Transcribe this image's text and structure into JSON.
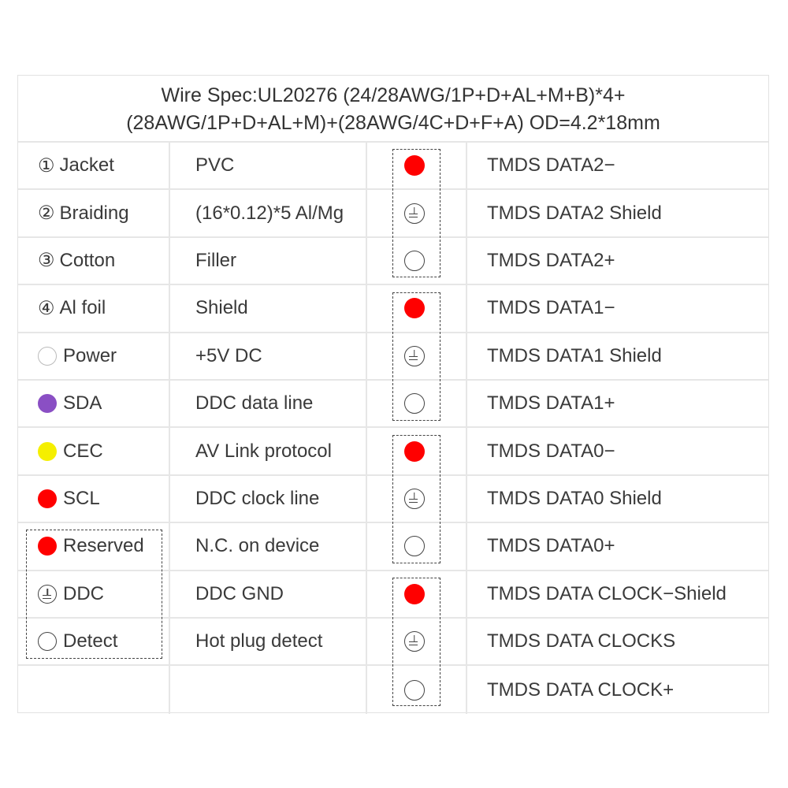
{
  "title": {
    "line1": "Wire Spec:UL20276 (24/28AWG/1P+D+AL+M+B)*4+",
    "line2": "(28AWG/1P+D+AL+M)+(28AWG/4C+D+F+A) OD=4.2*18mm"
  },
  "rows": [
    {
      "icon": "num",
      "num": "①",
      "label": "Jacket",
      "desc": "PVC",
      "pin_icon": "red",
      "signal": "TMDS DATA2−"
    },
    {
      "icon": "num",
      "num": "②",
      "label": "Braiding",
      "desc": "(16*0.12)*5 Al/Mg",
      "pin_icon": "ground",
      "signal": "TMDS DATA2 Shield"
    },
    {
      "icon": "num",
      "num": "③",
      "label": "Cotton",
      "desc": "Filler",
      "pin_icon": "white",
      "signal": "TMDS DATA2+"
    },
    {
      "icon": "num",
      "num": "④",
      "label": "Al foil",
      "desc": "Shield",
      "pin_icon": "red",
      "signal": "TMDS DATA1−"
    },
    {
      "icon": "hollow",
      "label": "Power",
      "desc": "+5V DC",
      "pin_icon": "ground",
      "signal": "TMDS DATA1 Shield"
    },
    {
      "icon": "purple",
      "label": "SDA",
      "desc": "DDC data line",
      "pin_icon": "white",
      "signal": "TMDS DATA1+"
    },
    {
      "icon": "yellow",
      "label": "CEC",
      "desc": "AV Link protocol",
      "pin_icon": "red",
      "signal": "TMDS DATA0−"
    },
    {
      "icon": "red",
      "label": "SCL",
      "desc": "DDC clock line",
      "pin_icon": "ground",
      "signal": "TMDS DATA0 Shield"
    },
    {
      "icon": "red",
      "label": "Reserved",
      "desc": "N.C. on device",
      "pin_icon": "white",
      "signal": "TMDS DATA0+"
    },
    {
      "icon": "ground",
      "label": "DDC",
      "desc": "DDC GND",
      "pin_icon": "red",
      "signal": "TMDS DATA CLOCK−Shield"
    },
    {
      "icon": "white",
      "label": "Detect",
      "desc": "Hot plug detect",
      "pin_icon": "ground",
      "signal": "TMDS DATA CLOCKS"
    },
    {
      "icon": "",
      "label": "",
      "desc": "",
      "pin_icon": "white",
      "signal": "TMDS DATA CLOCK+"
    }
  ],
  "colors": {
    "red": "#ff0000",
    "purple": "#8a4fc4",
    "yellow": "#f5ef00"
  }
}
